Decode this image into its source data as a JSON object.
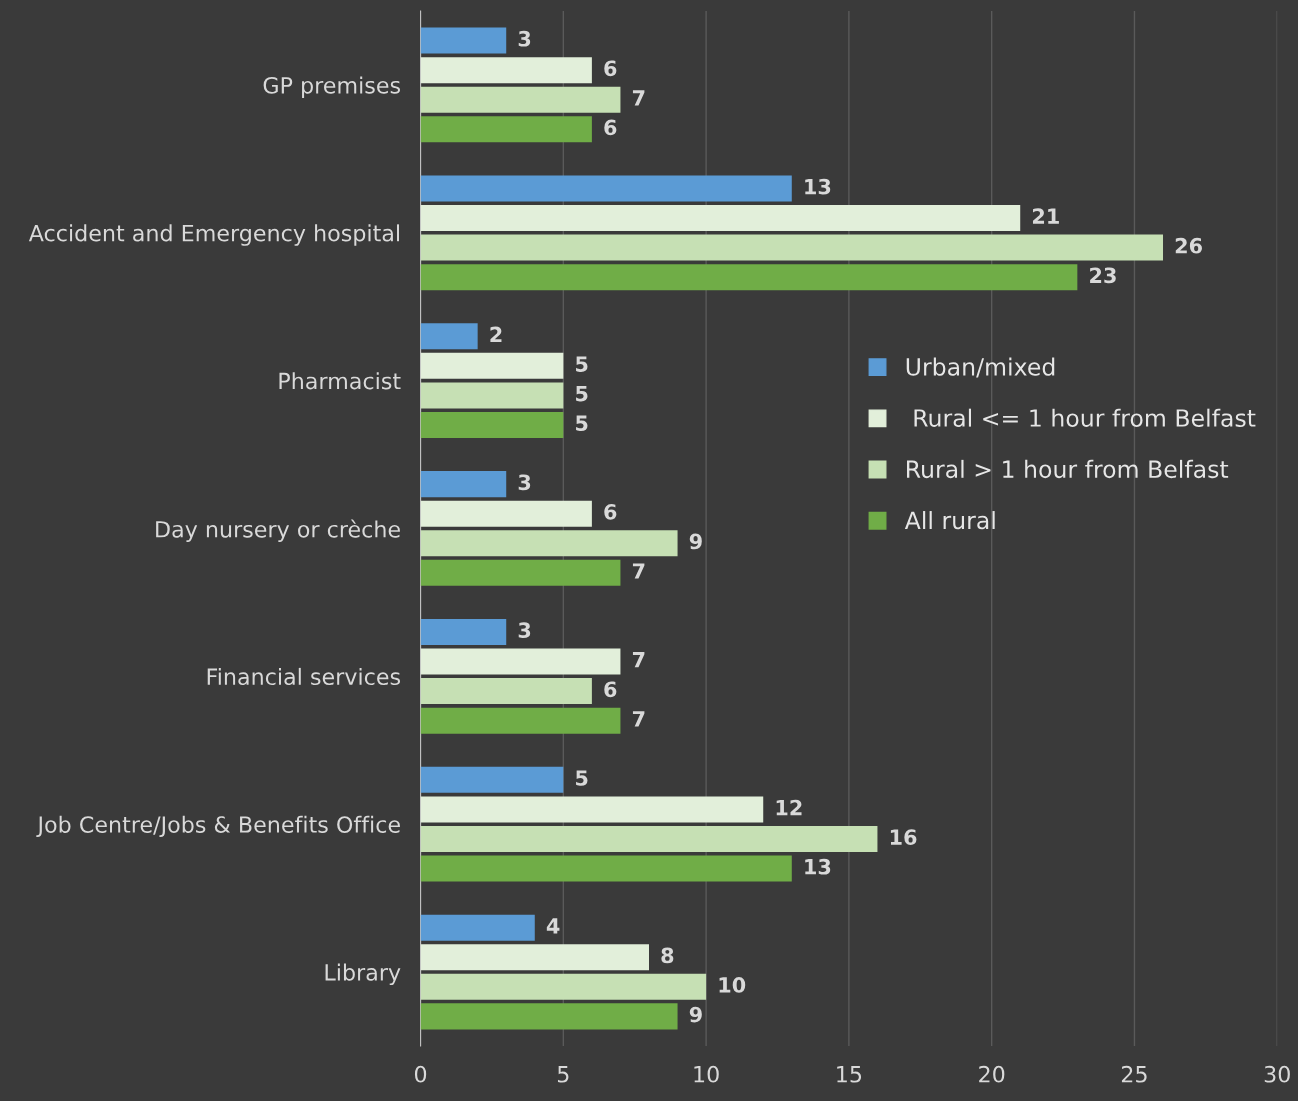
{
  "chart_data": {
    "type": "bar",
    "orientation": "horizontal",
    "categories": [
      "GP premises",
      "Accident and Emergency hospital",
      "Pharmacist",
      "Day nursery or crèche",
      "Financial services",
      "Job Centre/Jobs & Benefits Office",
      "Library"
    ],
    "series": [
      {
        "name": "Urban/mixed",
        "color": "#5b9bd5",
        "values": [
          3,
          13,
          2,
          3,
          3,
          5,
          4
        ]
      },
      {
        "name": " Rural <= 1 hour from Belfast",
        "color": "#e2efda",
        "values": [
          6,
          21,
          5,
          6,
          7,
          12,
          8
        ]
      },
      {
        "name": "Rural > 1 hour from Belfast",
        "color": "#c6e0b4",
        "values": [
          7,
          26,
          5,
          9,
          6,
          16,
          10
        ]
      },
      {
        "name": "All rural",
        "color": "#70ad47",
        "values": [
          6,
          23,
          5,
          7,
          7,
          13,
          9
        ]
      }
    ],
    "xlim": [
      0,
      30
    ],
    "xticks": [
      0,
      5,
      10,
      15,
      20,
      25,
      30
    ],
    "grid": "x",
    "legend": "right",
    "data_labels": true
  }
}
